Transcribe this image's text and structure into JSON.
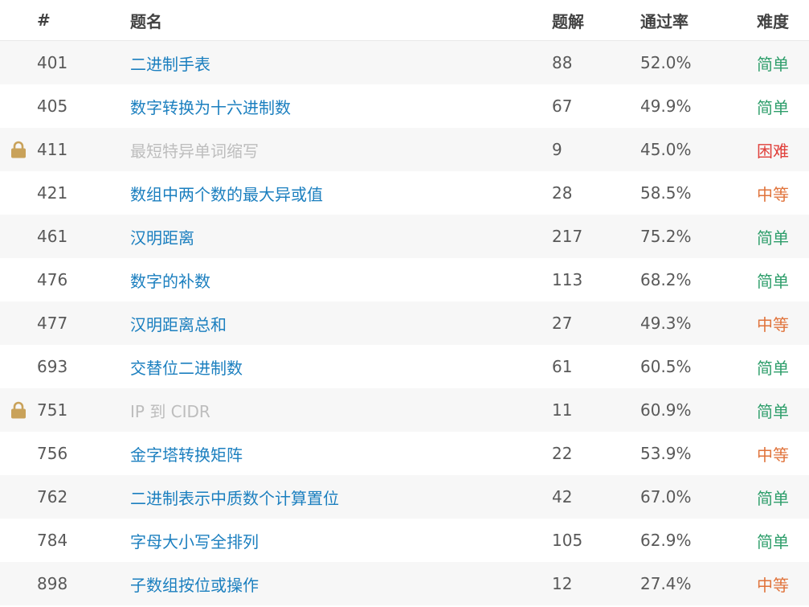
{
  "columns": {
    "id": "#",
    "title": "题名",
    "solutions": "题解",
    "pass_rate": "通过率",
    "difficulty": "难度"
  },
  "colors": {
    "link": "#1b7fbf",
    "locked_title": "#bdbdbd",
    "easy": "#2e9e6b",
    "medium": "#e0733b",
    "hard": "#e0403b",
    "lock_icon": "#c9a25a"
  },
  "rows": [
    {
      "id": "401",
      "title": "二进制手表",
      "solutions": "88",
      "pass_rate": "52.0%",
      "difficulty": "简单",
      "level": "easy",
      "locked": false
    },
    {
      "id": "405",
      "title": "数字转换为十六进制数",
      "solutions": "67",
      "pass_rate": "49.9%",
      "difficulty": "简单",
      "level": "easy",
      "locked": false
    },
    {
      "id": "411",
      "title": "最短特异单词缩写",
      "solutions": "9",
      "pass_rate": "45.0%",
      "difficulty": "困难",
      "level": "hard",
      "locked": true
    },
    {
      "id": "421",
      "title": "数组中两个数的最大异或值",
      "solutions": "28",
      "pass_rate": "58.5%",
      "difficulty": "中等",
      "level": "medium",
      "locked": false
    },
    {
      "id": "461",
      "title": "汉明距离",
      "solutions": "217",
      "pass_rate": "75.2%",
      "difficulty": "简单",
      "level": "easy",
      "locked": false
    },
    {
      "id": "476",
      "title": "数字的补数",
      "solutions": "113",
      "pass_rate": "68.2%",
      "difficulty": "简单",
      "level": "easy",
      "locked": false
    },
    {
      "id": "477",
      "title": "汉明距离总和",
      "solutions": "27",
      "pass_rate": "49.3%",
      "difficulty": "中等",
      "level": "medium",
      "locked": false
    },
    {
      "id": "693",
      "title": "交替位二进制数",
      "solutions": "61",
      "pass_rate": "60.5%",
      "difficulty": "简单",
      "level": "easy",
      "locked": false
    },
    {
      "id": "751",
      "title": "IP 到 CIDR",
      "solutions": "11",
      "pass_rate": "60.9%",
      "difficulty": "简单",
      "level": "easy",
      "locked": true
    },
    {
      "id": "756",
      "title": "金字塔转换矩阵",
      "solutions": "22",
      "pass_rate": "53.9%",
      "difficulty": "中等",
      "level": "medium",
      "locked": false
    },
    {
      "id": "762",
      "title": "二进制表示中质数个计算置位",
      "solutions": "42",
      "pass_rate": "67.0%",
      "difficulty": "简单",
      "level": "easy",
      "locked": false
    },
    {
      "id": "784",
      "title": "字母大小写全排列",
      "solutions": "105",
      "pass_rate": "62.9%",
      "difficulty": "简单",
      "level": "easy",
      "locked": false
    },
    {
      "id": "898",
      "title": "子数组按位或操作",
      "solutions": "12",
      "pass_rate": "27.4%",
      "difficulty": "中等",
      "level": "medium",
      "locked": false
    }
  ]
}
